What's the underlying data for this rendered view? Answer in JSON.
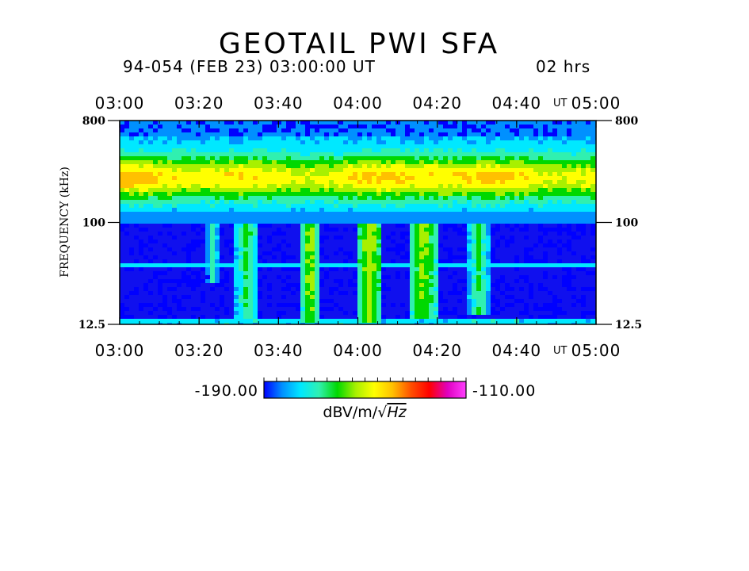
{
  "chart_data": {
    "type": "heatmap",
    "title": "GEOTAIL PWI SFA",
    "subtitle": "94-054 (FEB 23) 03:00:00 UT",
    "duration_label": "02 hrs",
    "time_unit_label": "UT",
    "xlabel": "",
    "ylabel": "FREQUENCY (kHz)",
    "x_ticks": [
      "03:00",
      "03:20",
      "03:40",
      "04:00",
      "04:20",
      "04:40",
      "05:00"
    ],
    "y_ticks": [
      "800",
      "100",
      "12.5"
    ],
    "y_scale": "log",
    "y_range_khz": [
      12.5,
      800
    ],
    "x_range": [
      "03:00",
      "05:00"
    ],
    "colorbar": {
      "min_label": "-190.00",
      "max_label": "-110.00",
      "min": -190,
      "max": -110,
      "unit_prefix": "dBV/m/",
      "unit_root": "Hz",
      "colors": [
        "#0000ff",
        "#0090ff",
        "#00e8ff",
        "#30f0b0",
        "#00d800",
        "#a8f000",
        "#ffff00",
        "#ffc000",
        "#ff5000",
        "#ff0000",
        "#e000c0",
        "#ff40ff"
      ]
    },
    "activity_bursts_ut": [
      {
        "start": "03:22",
        "end": "03:25",
        "intensity_dbv": -165,
        "low_freq_reach_khz": 30
      },
      {
        "start": "03:29",
        "end": "03:35",
        "intensity_dbv": -160,
        "low_freq_reach_khz": 14
      },
      {
        "start": "03:46",
        "end": "03:50",
        "intensity_dbv": -150,
        "low_freq_reach_khz": 13
      },
      {
        "start": "04:00",
        "end": "04:06",
        "intensity_dbv": -150,
        "low_freq_reach_khz": 13
      },
      {
        "start": "04:13",
        "end": "04:20",
        "intensity_dbv": -152,
        "low_freq_reach_khz": 14
      },
      {
        "start": "04:28",
        "end": "04:33",
        "intensity_dbv": -160,
        "low_freq_reach_khz": 15
      }
    ]
  }
}
